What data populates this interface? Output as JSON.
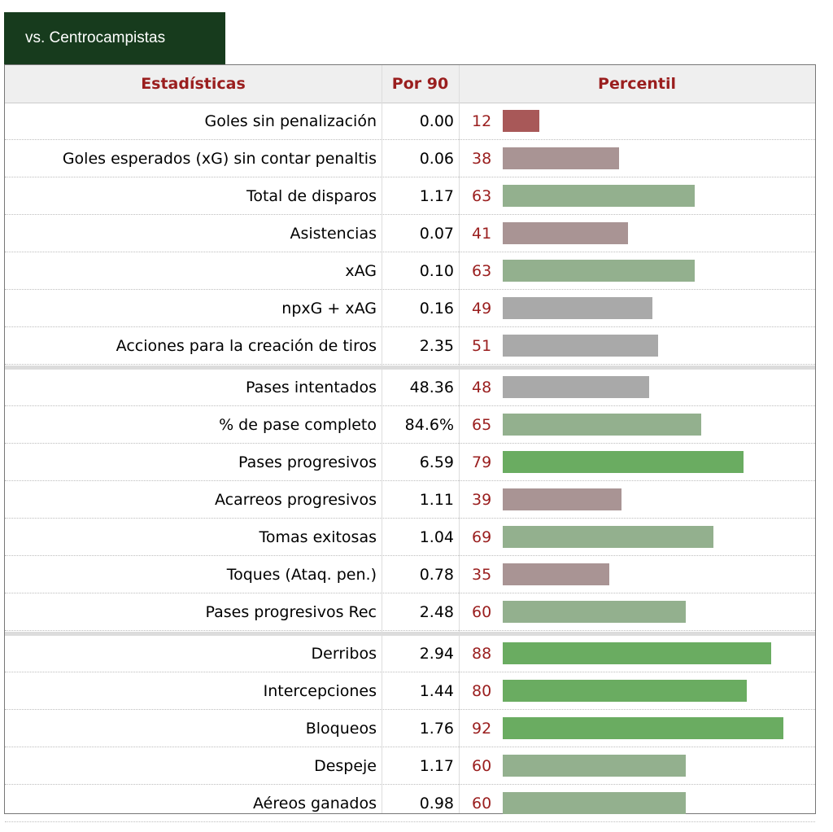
{
  "tab": {
    "label": "vs. Centrocampistas"
  },
  "headers": {
    "stat": "Estadísticas",
    "per90": "Por 90",
    "percentile": "Percentil"
  },
  "colors": {
    "header_text": "#9a1e1e",
    "tab_bg": "#173b1d",
    "bar_low": "#a85858",
    "bar_below": "#a99494",
    "bar_mid": "#a9a9a9",
    "bar_above": "#93b08e",
    "bar_high": "#6aac61"
  },
  "chart_data": {
    "type": "bar",
    "orientation": "horizontal",
    "xlim": [
      0,
      100
    ],
    "groups": [
      {
        "rows": [
          {
            "label": "Goles sin penalización",
            "per90": "0.00",
            "percentile": 12
          },
          {
            "label": "Goles esperados (xG) sin contar penaltis",
            "per90": "0.06",
            "percentile": 38
          },
          {
            "label": "Total de disparos",
            "per90": "1.17",
            "percentile": 63
          },
          {
            "label": "Asistencias",
            "per90": "0.07",
            "percentile": 41
          },
          {
            "label": "xAG",
            "per90": "0.10",
            "percentile": 63
          },
          {
            "label": "npxG + xAG",
            "per90": "0.16",
            "percentile": 49
          },
          {
            "label": "Acciones para la creación de tiros",
            "per90": "2.35",
            "percentile": 51
          }
        ]
      },
      {
        "rows": [
          {
            "label": "Pases intentados",
            "per90": "48.36",
            "percentile": 48
          },
          {
            "label": "% de pase completo",
            "per90": "84.6%",
            "percentile": 65
          },
          {
            "label": "Pases progresivos",
            "per90": "6.59",
            "percentile": 79
          },
          {
            "label": "Acarreos progresivos",
            "per90": "1.11",
            "percentile": 39
          },
          {
            "label": "Tomas exitosas",
            "per90": "1.04",
            "percentile": 69
          },
          {
            "label": "Toques (Ataq. pen.)",
            "per90": "0.78",
            "percentile": 35
          },
          {
            "label": "Pases progresivos Rec",
            "per90": "2.48",
            "percentile": 60
          }
        ]
      },
      {
        "rows": [
          {
            "label": "Derribos",
            "per90": "2.94",
            "percentile": 88
          },
          {
            "label": "Intercepciones",
            "per90": "1.44",
            "percentile": 80
          },
          {
            "label": "Bloqueos",
            "per90": "1.76",
            "percentile": 92
          },
          {
            "label": "Despeje",
            "per90": "1.17",
            "percentile": 60
          },
          {
            "label": "Aéreos ganados",
            "per90": "0.98",
            "percentile": 60
          }
        ]
      }
    ]
  }
}
